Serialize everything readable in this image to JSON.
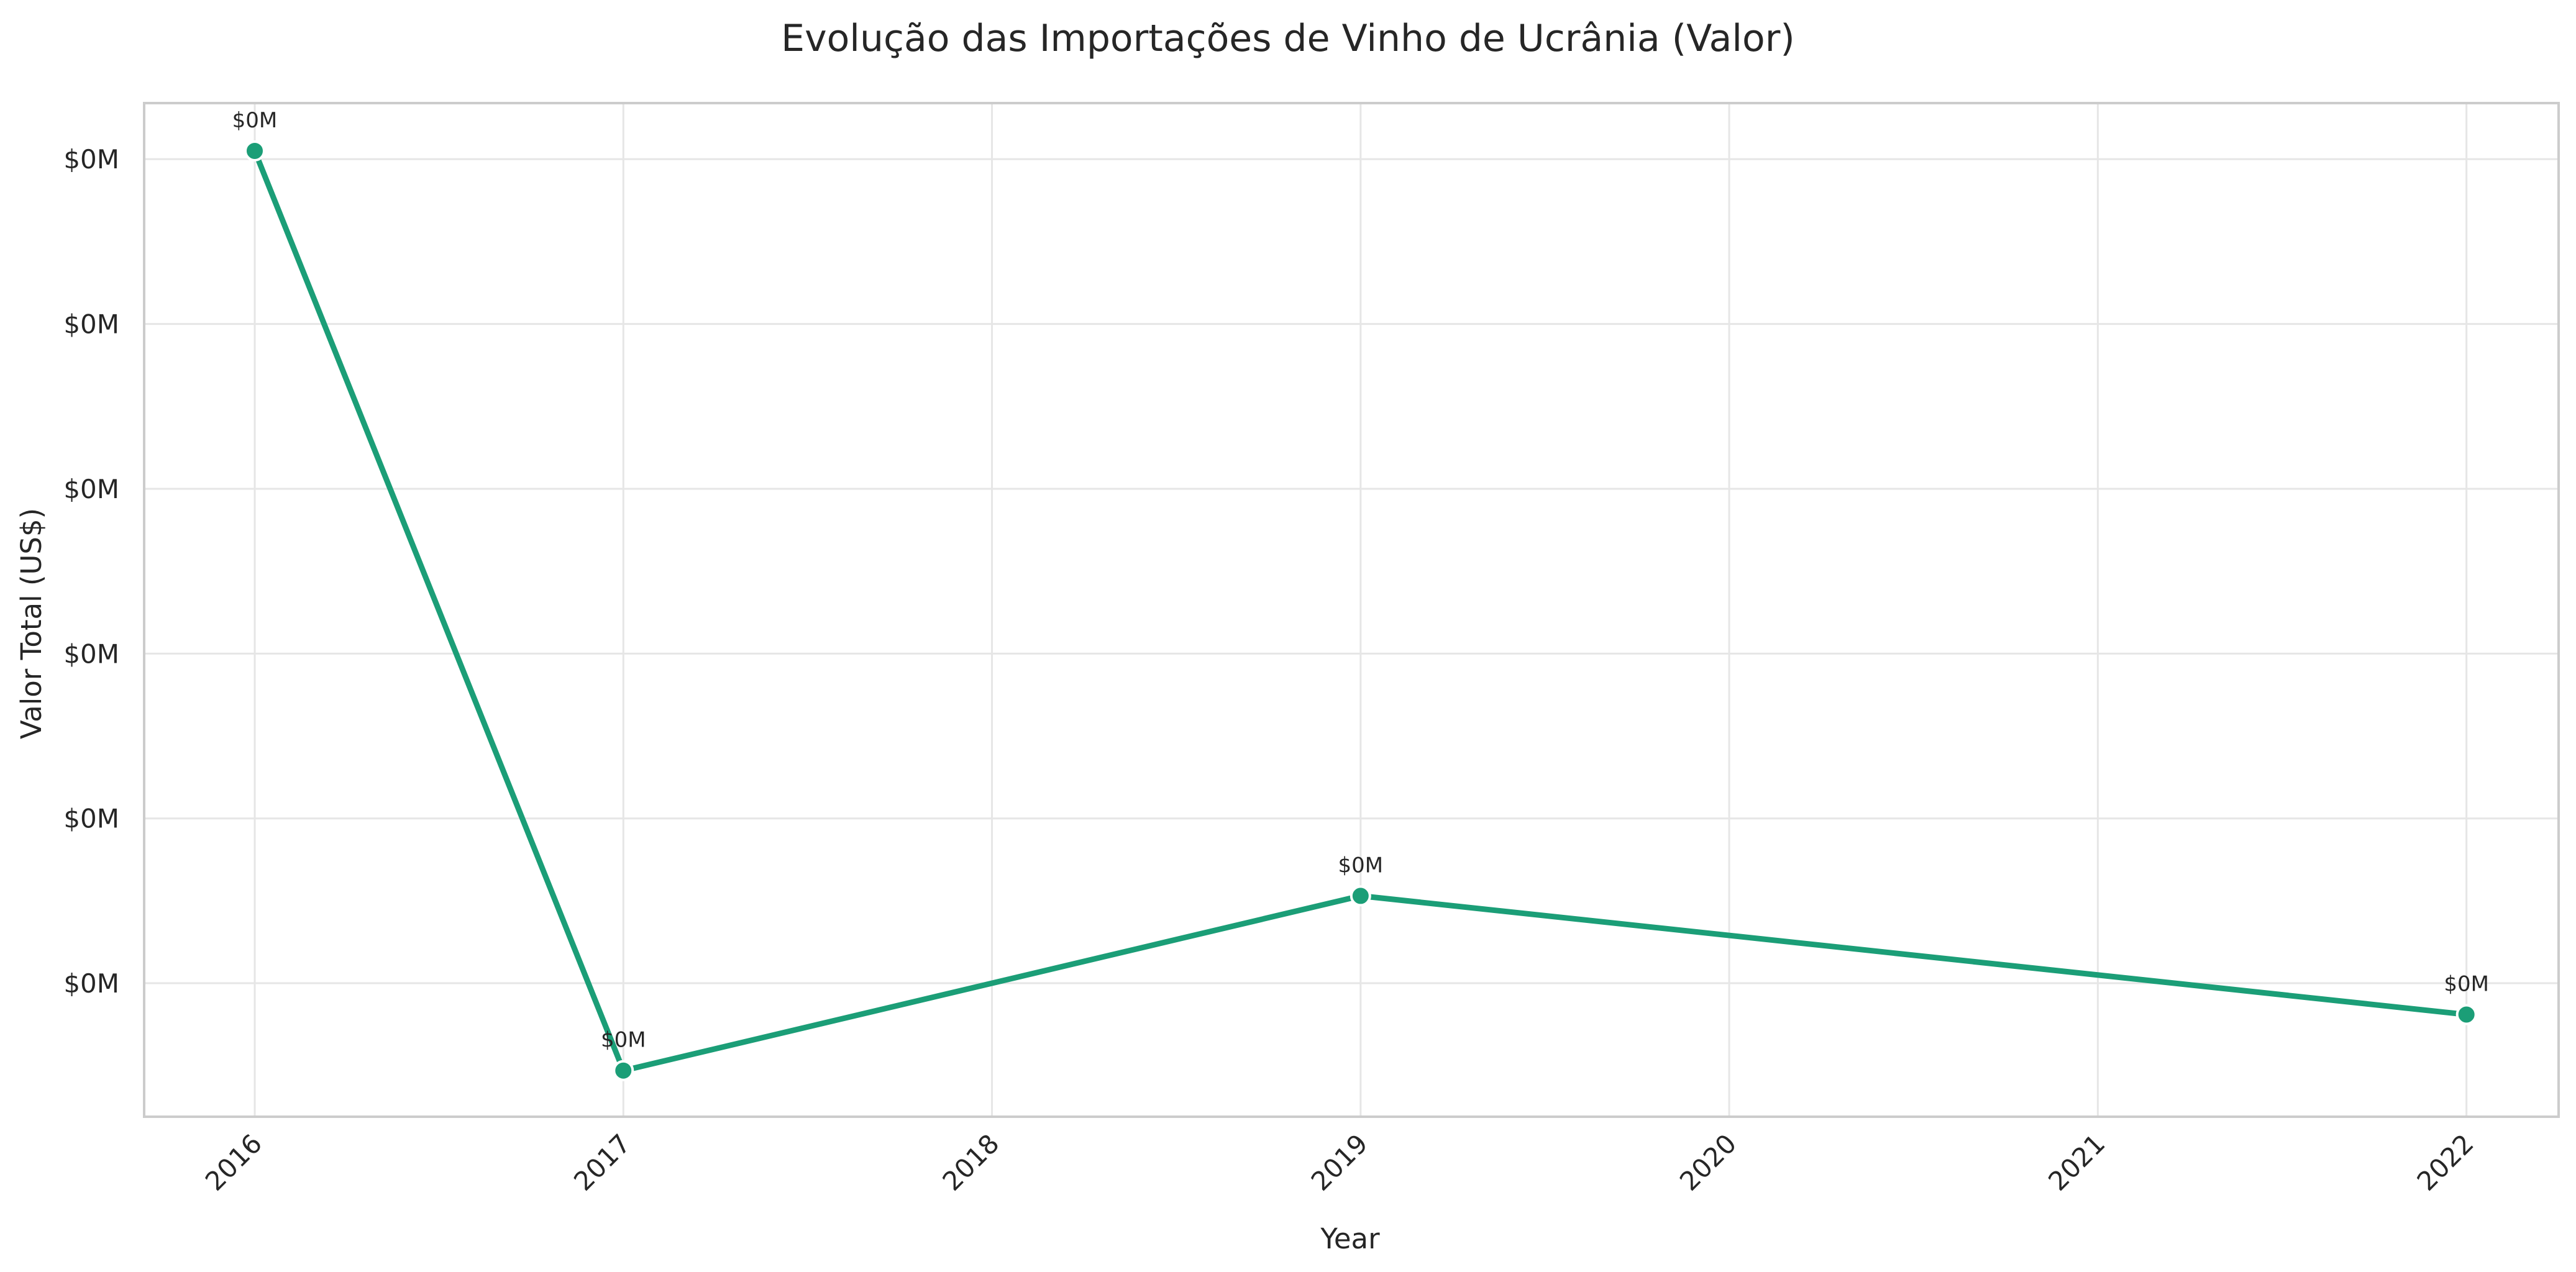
{
  "chart_data": {
    "type": "line",
    "title": "Evolução das Importações de Vinho de Ucrânia (Valor)",
    "xlabel": "Year",
    "ylabel": "Valor Total (US$)",
    "x": [
      2016,
      2017,
      2019,
      2022
    ],
    "x_ticks": [
      "2016",
      "2017",
      "2018",
      "2019",
      "2020",
      "2021",
      "2022"
    ],
    "xlim": [
      2015.7,
      2022.25
    ],
    "y_ticks": [
      {
        "value": 6,
        "label": "$0M"
      },
      {
        "value": 5,
        "label": "$0M"
      },
      {
        "value": 4,
        "label": "$0M"
      },
      {
        "value": 3,
        "label": "$0M"
      },
      {
        "value": 2,
        "label": "$0M"
      },
      {
        "value": 1,
        "label": "$0M"
      }
    ],
    "ylim": [
      0.19,
      6.34
    ],
    "series": [
      {
        "values": [
          6.05,
          0.47,
          1.53,
          0.81
        ],
        "labels": [
          "$0M",
          "$0M",
          "$0M",
          "$0M"
        ],
        "color": "#1b9e77"
      }
    ],
    "grid": true,
    "legend": "none"
  }
}
